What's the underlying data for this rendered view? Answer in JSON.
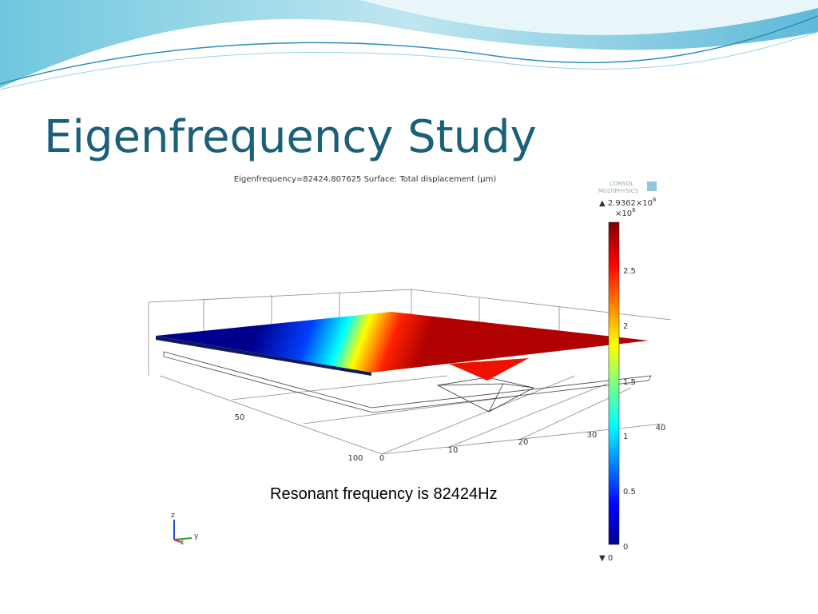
{
  "slide": {
    "title": "Eigenfrequency Study",
    "caption": "Resonant frequency is 82424Hz",
    "plot": {
      "header": "Eigenfrequency=82424.807625   Surface: Total displacement (µm)",
      "logo": [
        "COMSOL",
        "MULTIPHYSICS"
      ],
      "colorbar": {
        "max_mantissa": "▲ 2.9362×10",
        "max_exp": "6",
        "scale": "×10",
        "scale_exp": "6",
        "ticks": [
          "2.5",
          "2",
          "1.5",
          "1",
          "0.5",
          "0"
        ],
        "min": "▼ 0"
      },
      "axis_labels": [
        "50",
        "100",
        "0",
        "10",
        "20",
        "30",
        "40"
      ],
      "triad": [
        "z",
        "y",
        "x"
      ]
    }
  }
}
